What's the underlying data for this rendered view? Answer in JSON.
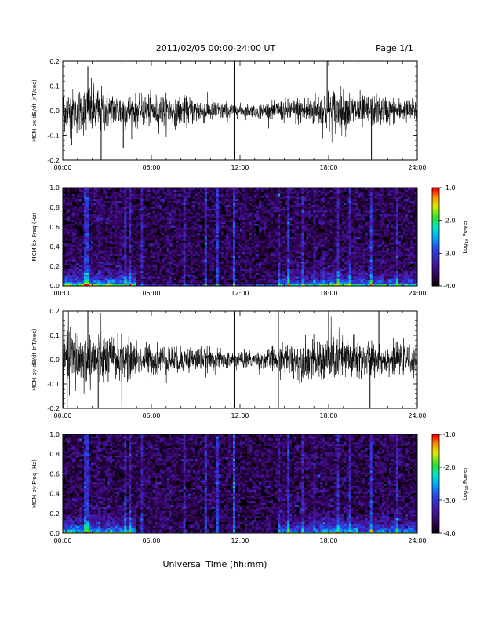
{
  "header": {
    "title": "2011/02/05  00:00-24:00 UT",
    "page": "Page 1/1"
  },
  "footer": {
    "xlabel": "Universal Time (hh:mm)"
  },
  "colorbar": {
    "ticks": [
      "-1.0",
      "-2.0",
      "-3.0",
      "-4.0"
    ],
    "label": "Log10 Power",
    "label_main": "Log",
    "label_sub": "10",
    "label_rest": " Power"
  },
  "chart_data": [
    {
      "type": "line",
      "ylabel": "MCM bx dB/dt (nT/sec)",
      "xticks": [
        "00:00",
        "06:00",
        "12:00",
        "18:00",
        "24:00"
      ],
      "yticks": [
        "0.2",
        "0.1",
        "0.0",
        "-0.1",
        "-0.2"
      ],
      "xlim": [
        0,
        24
      ],
      "ylim": [
        -0.2,
        0.2
      ],
      "x_unit": "hours UT",
      "envelope_hours": [
        0,
        1,
        2,
        3,
        4,
        5,
        6,
        7,
        8,
        9,
        10,
        11,
        12,
        13,
        14,
        15,
        16,
        17,
        18,
        19,
        20,
        21,
        22,
        23,
        24
      ],
      "envelope_amplitude": [
        0.09,
        0.1,
        0.12,
        0.09,
        0.08,
        0.07,
        0.07,
        0.07,
        0.06,
        0.06,
        0.05,
        0.04,
        0.03,
        0.03,
        0.04,
        0.05,
        0.06,
        0.07,
        0.1,
        0.09,
        0.08,
        0.07,
        0.06,
        0.05,
        0.05
      ],
      "spikes": [
        {
          "x": 1.7,
          "y": 0.18
        },
        {
          "x": 2.6,
          "y": -0.2
        },
        {
          "x": 11.6,
          "y": 0.2
        },
        {
          "x": 11.6,
          "y": -0.2
        },
        {
          "x": 17.9,
          "y": 0.2
        },
        {
          "x": 20.9,
          "y": -0.2
        },
        {
          "x": 0.6,
          "y": -0.14
        },
        {
          "x": 4.1,
          "y": -0.15
        }
      ]
    },
    {
      "type": "heatmap",
      "ylabel": "MCM bx Freq (Hz)",
      "xticks": [
        "00:00",
        "06:00",
        "12:00",
        "18:00",
        "24:00"
      ],
      "yticks": [
        "1.0",
        "0.8",
        "0.6",
        "0.4",
        "0.2",
        "0.0"
      ],
      "xlim": [
        0,
        24
      ],
      "ylim": [
        0,
        1.0
      ],
      "zlim": [
        -4.0,
        -1.0
      ],
      "background_log_power": -3.7,
      "low_freq_enhancement": [
        {
          "x_start": 0,
          "x_end": 5,
          "level": -2.2
        },
        {
          "x_start": 14.5,
          "x_end": 24,
          "level": -2.6
        },
        {
          "x_start": 17.5,
          "x_end": 19.5,
          "level": -2.2
        }
      ],
      "broadband_stripes_hours": [
        1.5,
        1.7,
        2.4,
        3.2,
        4.2,
        4.6,
        5.4,
        7.2,
        8.2,
        9.7,
        10.5,
        11.6,
        14.7,
        15.3,
        16.2,
        17.1,
        17.6,
        18.6,
        19.4,
        20.9,
        21.6,
        22.6
      ]
    },
    {
      "type": "line",
      "ylabel": "MCM by dB/dt (nT/sec)",
      "xticks": [
        "00:00",
        "06:00",
        "12:00",
        "18:00",
        "24:00"
      ],
      "yticks": [
        "0.2",
        "0.1",
        "0.0",
        "-0.1",
        "-0.2"
      ],
      "xlim": [
        0,
        24
      ],
      "ylim": [
        -0.2,
        0.2
      ],
      "x_unit": "hours UT",
      "envelope_hours": [
        0,
        1,
        2,
        3,
        4,
        5,
        6,
        7,
        8,
        9,
        10,
        11,
        12,
        13,
        14,
        15,
        16,
        17,
        18,
        19,
        20,
        21,
        22,
        23,
        24
      ],
      "envelope_amplitude": [
        0.16,
        0.14,
        0.13,
        0.11,
        0.1,
        0.08,
        0.07,
        0.07,
        0.06,
        0.06,
        0.05,
        0.04,
        0.04,
        0.04,
        0.05,
        0.07,
        0.08,
        0.09,
        0.12,
        0.11,
        0.1,
        0.08,
        0.07,
        0.06,
        0.06
      ],
      "spikes": [
        {
          "x": 0.3,
          "y": 0.2
        },
        {
          "x": 0.3,
          "y": -0.2
        },
        {
          "x": 1.7,
          "y": 0.2
        },
        {
          "x": 2.4,
          "y": -0.2
        },
        {
          "x": 11.6,
          "y": 0.2
        },
        {
          "x": 11.6,
          "y": -0.2
        },
        {
          "x": 14.6,
          "y": -0.2
        },
        {
          "x": 14.6,
          "y": 0.2
        },
        {
          "x": 18.0,
          "y": 0.2
        },
        {
          "x": 20.8,
          "y": -0.2
        },
        {
          "x": 21.4,
          "y": 0.2
        },
        {
          "x": 4.0,
          "y": -0.18
        }
      ]
    },
    {
      "type": "heatmap",
      "ylabel": "MCM by Freq (Hz)",
      "xticks": [
        "00:00",
        "06:00",
        "12:00",
        "18:00",
        "24:00"
      ],
      "yticks": [
        "1.0",
        "0.8",
        "0.6",
        "0.4",
        "0.2",
        "0.0"
      ],
      "xlim": [
        0,
        24
      ],
      "ylim": [
        0,
        1.0
      ],
      "zlim": [
        -4.0,
        -1.0
      ],
      "background_log_power": -3.7,
      "low_freq_enhancement": [
        {
          "x_start": 0,
          "x_end": 5,
          "level": -2.2
        },
        {
          "x_start": 14.5,
          "x_end": 24,
          "level": -2.5
        },
        {
          "x_start": 17.5,
          "x_end": 20,
          "level": -2.1
        }
      ],
      "broadband_stripes_hours": [
        1.5,
        1.7,
        2.4,
        3.2,
        4.2,
        4.6,
        5.4,
        7.2,
        8.2,
        9.7,
        10.5,
        11.6,
        14.7,
        15.3,
        16.2,
        17.1,
        17.6,
        18.6,
        19.4,
        20.9,
        21.6,
        22.6
      ]
    }
  ]
}
